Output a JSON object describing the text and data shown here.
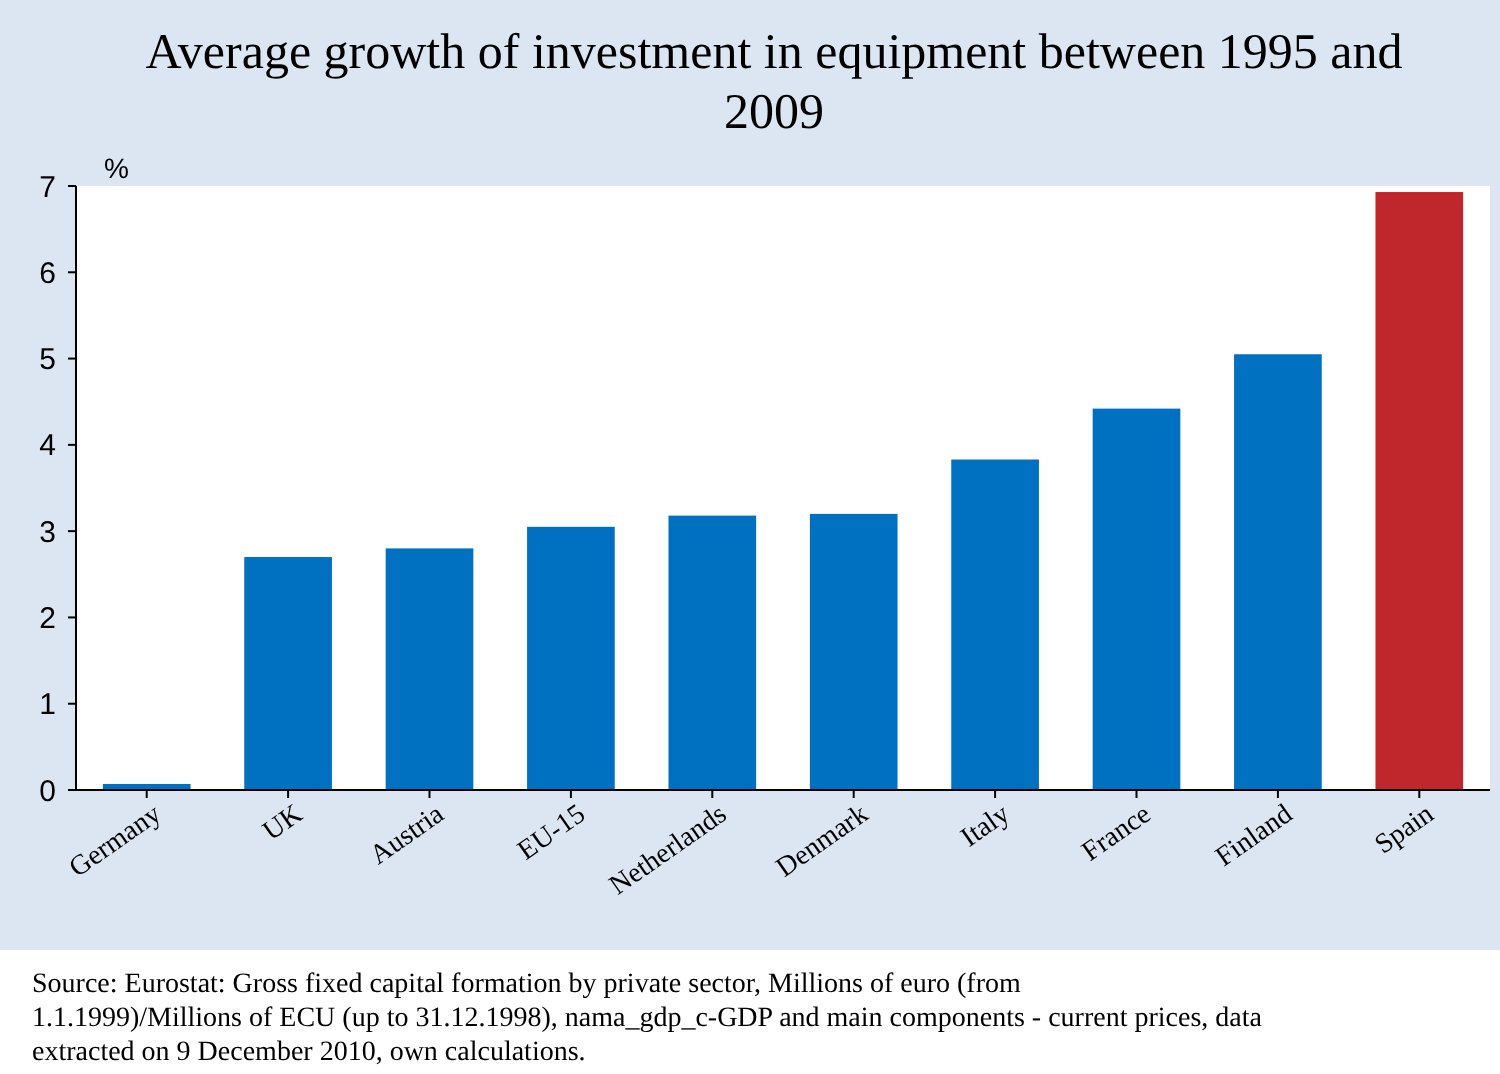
{
  "chart_data": {
    "type": "bar",
    "title": "Average growth of investment in equipment between 1995 and 2009",
    "ylabel": "%",
    "categories": [
      "Germany",
      "UK",
      "Austria",
      "EU-15",
      "Netherlands",
      "Denmark",
      "Italy",
      "France",
      "Finland",
      "Spain"
    ],
    "values": [
      0.07,
      2.7,
      2.8,
      3.05,
      3.18,
      3.2,
      3.83,
      4.42,
      5.05,
      6.93
    ],
    "colors": [
      "#0070c0",
      "#0070c0",
      "#0070c0",
      "#0070c0",
      "#0070c0",
      "#0070c0",
      "#0070c0",
      "#0070c0",
      "#0070c0",
      "#c0272d"
    ],
    "ylim": [
      0,
      7
    ],
    "yticks": [
      0,
      1,
      2,
      3,
      4,
      5,
      6,
      7
    ],
    "grid": false,
    "annotations": [
      "Source: Eurostat: Gross fixed capital formation by private sector, Millions of euro (from 1.1.1999)/Millions of ECU (up to 31.12.1998), nama_gdp_c-GDP and main components - current prices, data extracted on 9 December 2010, own calculations."
    ]
  }
}
